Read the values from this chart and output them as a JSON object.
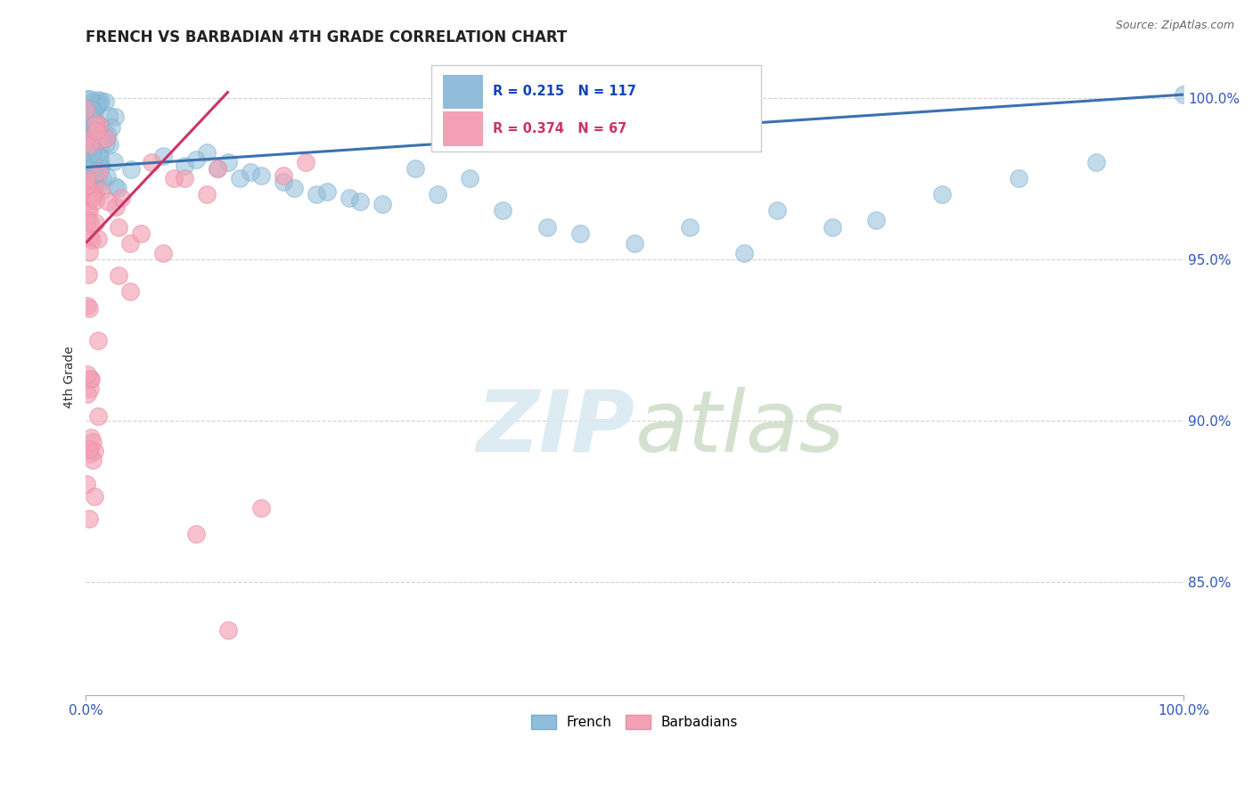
{
  "title": "FRENCH VS BARBADIAN 4TH GRADE CORRELATION CHART",
  "source": "Source: ZipAtlas.com",
  "ylabel": "4th Grade",
  "xlim": [
    0.0,
    1.0
  ],
  "ylim": [
    0.815,
    1.012
  ],
  "yticks": [
    0.85,
    0.9,
    0.95,
    1.0
  ],
  "ytick_labels": [
    "85.0%",
    "90.0%",
    "95.0%",
    "100.0%"
  ],
  "french_R": 0.215,
  "french_N": 117,
  "barbadian_R": 0.374,
  "barbadian_N": 67,
  "blue_color": "#90BDD9",
  "blue_edge": "#7AAECE",
  "pink_color": "#F4A0B5",
  "pink_edge": "#E890A5",
  "blue_line_color": "#3B72B0",
  "pink_line_color": "#CC3366",
  "watermark_color": "#D8E8F0",
  "title_fontsize": 12,
  "axis_label_color": "#3355BB",
  "tick_color": "#3355BB",
  "grid_color": "#CCCCCC",
  "background_color": "#FFFFFF",
  "marker_size": 200
}
